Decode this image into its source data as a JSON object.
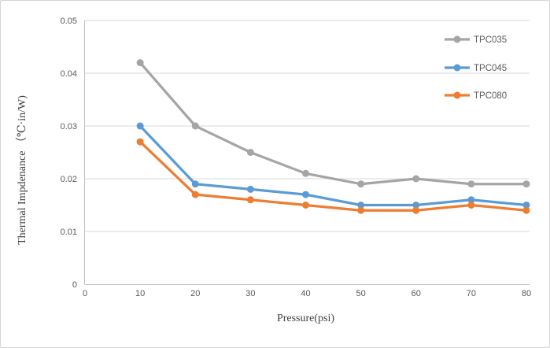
{
  "chart_data": {
    "type": "line",
    "x": [
      10,
      20,
      30,
      40,
      50,
      60,
      70,
      80
    ],
    "series": [
      {
        "name": "TPC035",
        "color": "#A5A5A5",
        "values": [
          0.042,
          0.03,
          0.025,
          0.021,
          0.019,
          0.02,
          0.019,
          0.019
        ]
      },
      {
        "name": "TPC045",
        "color": "#5B9BD5",
        "values": [
          0.03,
          0.019,
          0.018,
          0.017,
          0.015,
          0.015,
          0.016,
          0.015
        ]
      },
      {
        "name": "TPC080",
        "color": "#ED7D31",
        "values": [
          0.027,
          0.017,
          0.016,
          0.015,
          0.014,
          0.014,
          0.015,
          0.014
        ]
      }
    ],
    "title": "",
    "xlabel": "Pressure(psi)",
    "ylabel": "Thermal Impdenance （℃·in/W)",
    "xlim": [
      0,
      80
    ],
    "ylim": [
      0,
      0.05
    ],
    "x_tick_values": [
      0,
      10,
      20,
      30,
      40,
      50,
      60,
      70,
      80
    ],
    "x_tick_labels": [
      "0",
      "10",
      "20",
      "30",
      "40",
      "50",
      "60",
      "70",
      "80"
    ],
    "y_tick_values": [
      0,
      0.01,
      0.02,
      0.03,
      0.04,
      0.05
    ],
    "y_tick_labels": [
      "0",
      "0.01",
      "0.02",
      "0.03",
      "0.04",
      "0.05"
    ],
    "grid": true,
    "legend_position": "inside-top-right",
    "marker": "circle",
    "colors": {
      "gridline": "#D9D9D9",
      "axis_line": "#BFBFBF",
      "tick_text": "#595959",
      "legend_text": "#595959",
      "title_text": "#3F3F3F",
      "frame_border": "#D4D4D4",
      "background": "#FFFFFF"
    }
  }
}
